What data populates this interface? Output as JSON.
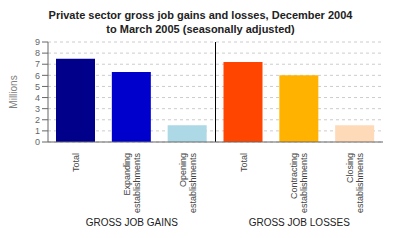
{
  "chart_data": {
    "type": "bar",
    "title": "Private sector gross job gains and losses, December 2004\nto March 2005 (seasonally adjusted)",
    "categories": [
      "Total",
      "Expanding\nestablishments",
      "Opening\nestablishments",
      "Total",
      "Contracting\nestablishments",
      "Closing\nestablishments"
    ],
    "values": [
      7.5,
      6.3,
      1.5,
      7.2,
      6.0,
      1.5
    ],
    "colors": [
      "#00008B",
      "#0000CD",
      "#ADD8E6",
      "#FF4500",
      "#FFB300",
      "#FFDAB9"
    ],
    "ylabel": "Millions",
    "ylim": [
      0,
      9
    ],
    "yticks": [
      0,
      1,
      2,
      3,
      4,
      5,
      6,
      7,
      8,
      9
    ],
    "grid": true,
    "annotations": [
      "GROSS JOB GAINS",
      "GROSS JOB LOSSES"
    ]
  }
}
